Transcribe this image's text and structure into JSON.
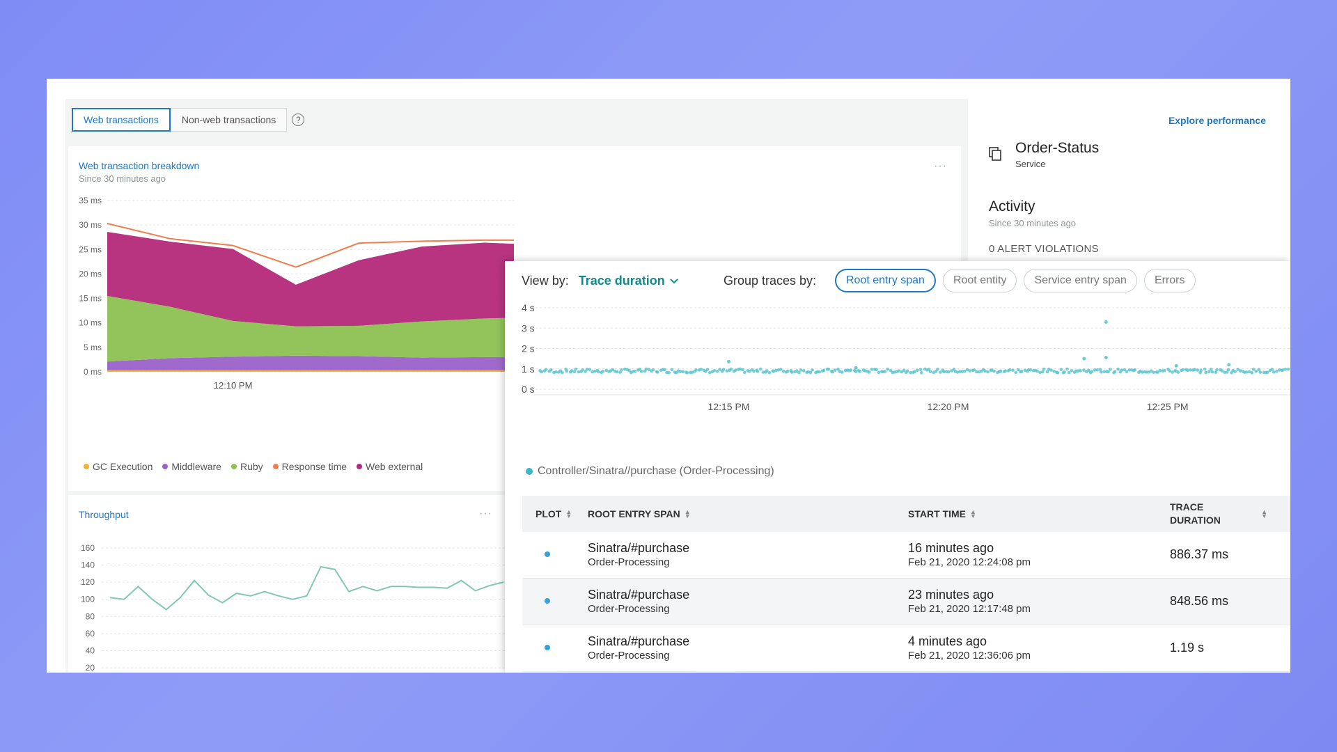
{
  "tabs": [
    {
      "label": "Web transactions",
      "active": true
    },
    {
      "label": "Non-web transactions",
      "active": false
    }
  ],
  "help_glyph": "?",
  "breakdown": {
    "title": "Web transaction breakdown",
    "subtitle": "Since 30 minutes ago",
    "more": "···",
    "legend": [
      {
        "label": "GC Execution",
        "color": "#f2b035"
      },
      {
        "label": "Middleware",
        "color": "#9b62c9"
      },
      {
        "label": "Ruby",
        "color": "#8cc152"
      },
      {
        "label": "Response time",
        "color": "#f07d4a"
      },
      {
        "label": "Web external",
        "color": "#b4297a"
      }
    ]
  },
  "throughput": {
    "title": "Throughput",
    "more": "···"
  },
  "service": {
    "explore_link": "Explore performance",
    "name": "Order-Status",
    "type": "Service",
    "icon": "copy-icon"
  },
  "activity": {
    "title": "Activity",
    "subtitle": "Since 30 minutes ago",
    "alerts": "0 ALERT VIOLATIONS"
  },
  "traces": {
    "view_by_label": "View by:",
    "view_by_value": "Trace duration",
    "group_by_label": "Group traces by:",
    "group_options": [
      {
        "label": "Root entry span",
        "active": true
      },
      {
        "label": "Root entity",
        "active": false
      },
      {
        "label": "Service entry span",
        "active": false
      },
      {
        "label": "Errors",
        "active": false
      }
    ],
    "scatter_legend": "Controller/Sinatra//purchase (Order-Processing)",
    "table": {
      "headers": {
        "plot": "PLOT",
        "root_entry_span": "ROOT ENTRY SPAN",
        "start_time": "START TIME",
        "trace_duration": "TRACE DURATION"
      },
      "rows": [
        {
          "span": "Sinatra/#purchase",
          "entity": "Order-Processing",
          "ago": "16 minutes ago",
          "timestamp": "Feb 21, 2020 12:24:08 pm",
          "duration": "886.37 ms"
        },
        {
          "span": "Sinatra/#purchase",
          "entity": "Order-Processing",
          "ago": "23 minutes ago",
          "timestamp": "Feb 21, 2020 12:17:48 pm",
          "duration": "848.56 ms"
        },
        {
          "span": "Sinatra/#purchase",
          "entity": "Order-Processing",
          "ago": "4 minutes ago",
          "timestamp": "Feb 21, 2020 12:36:06 pm",
          "duration": "1.19 s"
        }
      ]
    }
  },
  "chart_data": [
    {
      "type": "area",
      "y_ticks": [
        "35 ms",
        "30 ms",
        "25 ms",
        "20 ms",
        "15 ms",
        "10 ms",
        "5 ms",
        "0 ms"
      ],
      "x_ticks": [
        {
          "label": "12:10 PM",
          "x": 10.5
        },
        {
          "label": "12:15 PM",
          "x": 15.5
        },
        {
          "label": "12:20 PM",
          "x": 20.5
        }
      ],
      "ylim": [
        0,
        35
      ],
      "xlim": [
        8.5,
        22
      ],
      "x": [
        8.5,
        9.5,
        10.5,
        11.5,
        12.5,
        13.5,
        14.5,
        15.5,
        16.5,
        17.5,
        18.5,
        19.5,
        20.5,
        21.5,
        22
      ],
      "series": [
        {
          "name": "GC Execution",
          "color": "#f2b035",
          "values": [
            0.3,
            0.3,
            0.3,
            0.3,
            0.3,
            0.3,
            0.3,
            0.3,
            0.3,
            0.3,
            0.3,
            0.3,
            0.3,
            0.3,
            0.3
          ]
        },
        {
          "name": "Middleware",
          "color": "#9b62c9",
          "values": [
            1.8,
            2.5,
            2.8,
            3.0,
            2.9,
            2.6,
            2.7,
            2.8,
            2.5,
            2.6,
            2.5,
            2.7,
            2.8,
            2.6,
            2.7
          ]
        },
        {
          "name": "Ruby",
          "color": "#8cc152",
          "values": [
            13.4,
            10.5,
            7.3,
            6.0,
            6.2,
            7.4,
            7.9,
            8.1,
            7.4,
            7.1,
            7.5,
            7.2,
            7.6,
            12.0,
            12.0
          ]
        },
        {
          "name": "Web external",
          "color": "#b4297a",
          "values": [
            13.1,
            13.3,
            14.7,
            8.5,
            13.4,
            15.3,
            15.5,
            14.7,
            13.3,
            13.2,
            15.1,
            17.2,
            14.5,
            11.5,
            10.5
          ]
        }
      ],
      "response_time": {
        "name": "Response time",
        "color": "#f07d4a",
        "values": [
          30.3,
          27.2,
          25.8,
          21.4,
          26.3,
          26.7,
          26.9,
          26.9,
          23.1,
          24.2,
          26.3,
          27.4,
          25.5,
          28.4,
          27.4
        ]
      }
    },
    {
      "type": "line",
      "y_ticks": [
        160,
        140,
        120,
        100,
        80,
        60,
        40,
        20
      ],
      "ylim": [
        20,
        160
      ],
      "values": [
        102,
        100,
        115,
        100,
        88,
        102,
        122,
        105,
        96,
        107,
        104,
        109,
        104,
        100,
        104,
        138,
        135,
        109,
        115,
        110,
        115,
        115,
        114,
        114,
        113,
        122,
        110,
        116,
        120
      ]
    },
    {
      "type": "scatter",
      "y_ticks": [
        "4 s",
        "3 s",
        "2 s",
        "1 s",
        "0 s"
      ],
      "x_ticks": [
        {
          "label": "12:15 PM",
          "x": 15
        },
        {
          "label": "12:20 PM",
          "x": 20
        },
        {
          "label": "12:25 PM",
          "x": 25
        }
      ],
      "xlim": [
        10.5,
        27.8
      ],
      "ylim": [
        0,
        4
      ],
      "series_name": "Controller/Sinatra//purchase (Order-Processing)",
      "color": "#5cc6d0",
      "outliers": [
        {
          "x": 15,
          "y": 1.35
        },
        {
          "x": 17.9,
          "y": 1.05
        },
        {
          "x": 23.1,
          "y": 1.5
        },
        {
          "x": 23.6,
          "y": 1.55
        },
        {
          "x": 23.6,
          "y": 3.3
        },
        {
          "x": 25.2,
          "y": 1.15
        },
        {
          "x": 26.4,
          "y": 1.2
        }
      ]
    }
  ]
}
